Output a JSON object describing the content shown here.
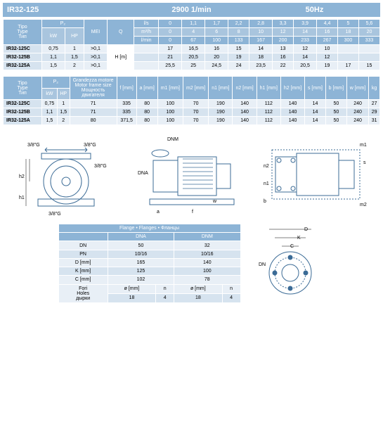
{
  "header": {
    "model": "IR32-125",
    "rpm": "2900 1/min",
    "hz": "50Hz"
  },
  "table1": {
    "cols": {
      "tipo": "Tipo\nType\nТип",
      "p2": "P₂",
      "kw": "kW",
      "hp": "HP",
      "mei": "MEI",
      "q": "Q",
      "ls": "l/s",
      "m3h": "m³/h",
      "lmin": "l/min",
      "hm": "H [m]"
    },
    "q_ls": [
      "0",
      "1,1",
      "1,7",
      "2,2",
      "2,8",
      "3,3",
      "3,9",
      "4,4",
      "5",
      "5,6"
    ],
    "q_m3h": [
      "0",
      "4",
      "6",
      "8",
      "10",
      "12",
      "14",
      "16",
      "18",
      "20"
    ],
    "q_lmin": [
      "0",
      "67",
      "100",
      "133",
      "167",
      "200",
      "233",
      "267",
      "300",
      "333"
    ],
    "rows": [
      {
        "type": "IR32-125C",
        "kw": "0,75",
        "hp": "1",
        "mei": ">0,1",
        "vals": [
          "17",
          "16,5",
          "16",
          "15",
          "14",
          "13",
          "12",
          "10",
          "",
          ""
        ]
      },
      {
        "type": "IR32-125B",
        "kw": "1,1",
        "hp": "1,5",
        "mei": ">0,1",
        "vals": [
          "21",
          "20,5",
          "20",
          "19",
          "18",
          "16",
          "14",
          "12",
          "",
          ""
        ]
      },
      {
        "type": "IR32-125A",
        "kw": "1,5",
        "hp": "2",
        "mei": ">0,1",
        "vals": [
          "25,5",
          "25",
          "24,5",
          "24",
          "23,5",
          "22",
          "20,5",
          "19",
          "17",
          "15"
        ]
      }
    ]
  },
  "table2": {
    "cols": {
      "tipo": "Tipo\nType\nТип",
      "p2": "P₂",
      "kw": "kW",
      "hp": "HP",
      "motor": "Grandezza motore\nMotor frame size\nМощность двигателя",
      "f": "f [mm]",
      "a": "a [mm]",
      "m1": "m1 [mm]",
      "m2": "m2 [mm]",
      "n1": "n1 [mm]",
      "n2": "n2 [mm]",
      "h1": "h1 [mm]",
      "h2": "h2 [mm]",
      "s": "s [mm]",
      "b": "b [mm]",
      "w": "w [mm]",
      "kg": "kg"
    },
    "rows": [
      {
        "type": "IR32-125C",
        "kw": "0,75",
        "hp": "1",
        "motor": "71",
        "f": "335",
        "a": "80",
        "m1": "100",
        "m2": "70",
        "n1": "190",
        "n2": "140",
        "h1": "112",
        "h2": "140",
        "s": "14",
        "b": "50",
        "w": "240",
        "kg": "27"
      },
      {
        "type": "IR32-125B",
        "kw": "1,1",
        "hp": "1,5",
        "motor": "71",
        "f": "335",
        "a": "80",
        "m1": "100",
        "m2": "70",
        "n1": "190",
        "n2": "140",
        "h1": "112",
        "h2": "140",
        "s": "14",
        "b": "50",
        "w": "240",
        "kg": "29"
      },
      {
        "type": "IR32-125A",
        "kw": "1,5",
        "hp": "2",
        "motor": "80",
        "f": "371,5",
        "a": "80",
        "m1": "100",
        "m2": "70",
        "n1": "190",
        "n2": "140",
        "h1": "112",
        "h2": "140",
        "s": "14",
        "b": "50",
        "w": "240",
        "kg": "31"
      }
    ]
  },
  "diag_labels": {
    "g38": "3/8\"G",
    "h1": "h1",
    "h2": "h2",
    "dnm": "DNM",
    "dna": "DNA",
    "a": "a",
    "f": "f",
    "w": "w",
    "m1": "m1",
    "m2": "m2",
    "n1": "n1",
    "n2": "n2",
    "s": "s",
    "b": "b"
  },
  "flange": {
    "title": "Flange • Flanges • Фланцы",
    "dna": "DNA",
    "dnm": "DNM",
    "rows": [
      {
        "label": "DN",
        "dna": "50",
        "dnm": "32"
      },
      {
        "label": "PN",
        "dna": "10/16",
        "dnm": "10/16"
      },
      {
        "label": "D [mm]",
        "dna": "165",
        "dnm": "140"
      },
      {
        "label": "K [mm]",
        "dna": "125",
        "dnm": "100"
      },
      {
        "label": "C [mm]",
        "dna": "102",
        "dnm": "78"
      }
    ],
    "fori": "Fori\nHoles\nдырки",
    "phi": "ø [mm]",
    "n": "n",
    "fori_vals": {
      "dna_phi": "18",
      "dna_n": "4",
      "dnm_phi": "18",
      "dnm_n": "4"
    },
    "dlabels": {
      "D": "D",
      "K": "K",
      "C": "C",
      "DN": "DN"
    }
  },
  "colors": {
    "hdr": "#8db4d6",
    "sub": "#a9c5de",
    "row1": "#e8eff6",
    "row2": "#d6e3ef",
    "stroke": "#3b6b96"
  }
}
